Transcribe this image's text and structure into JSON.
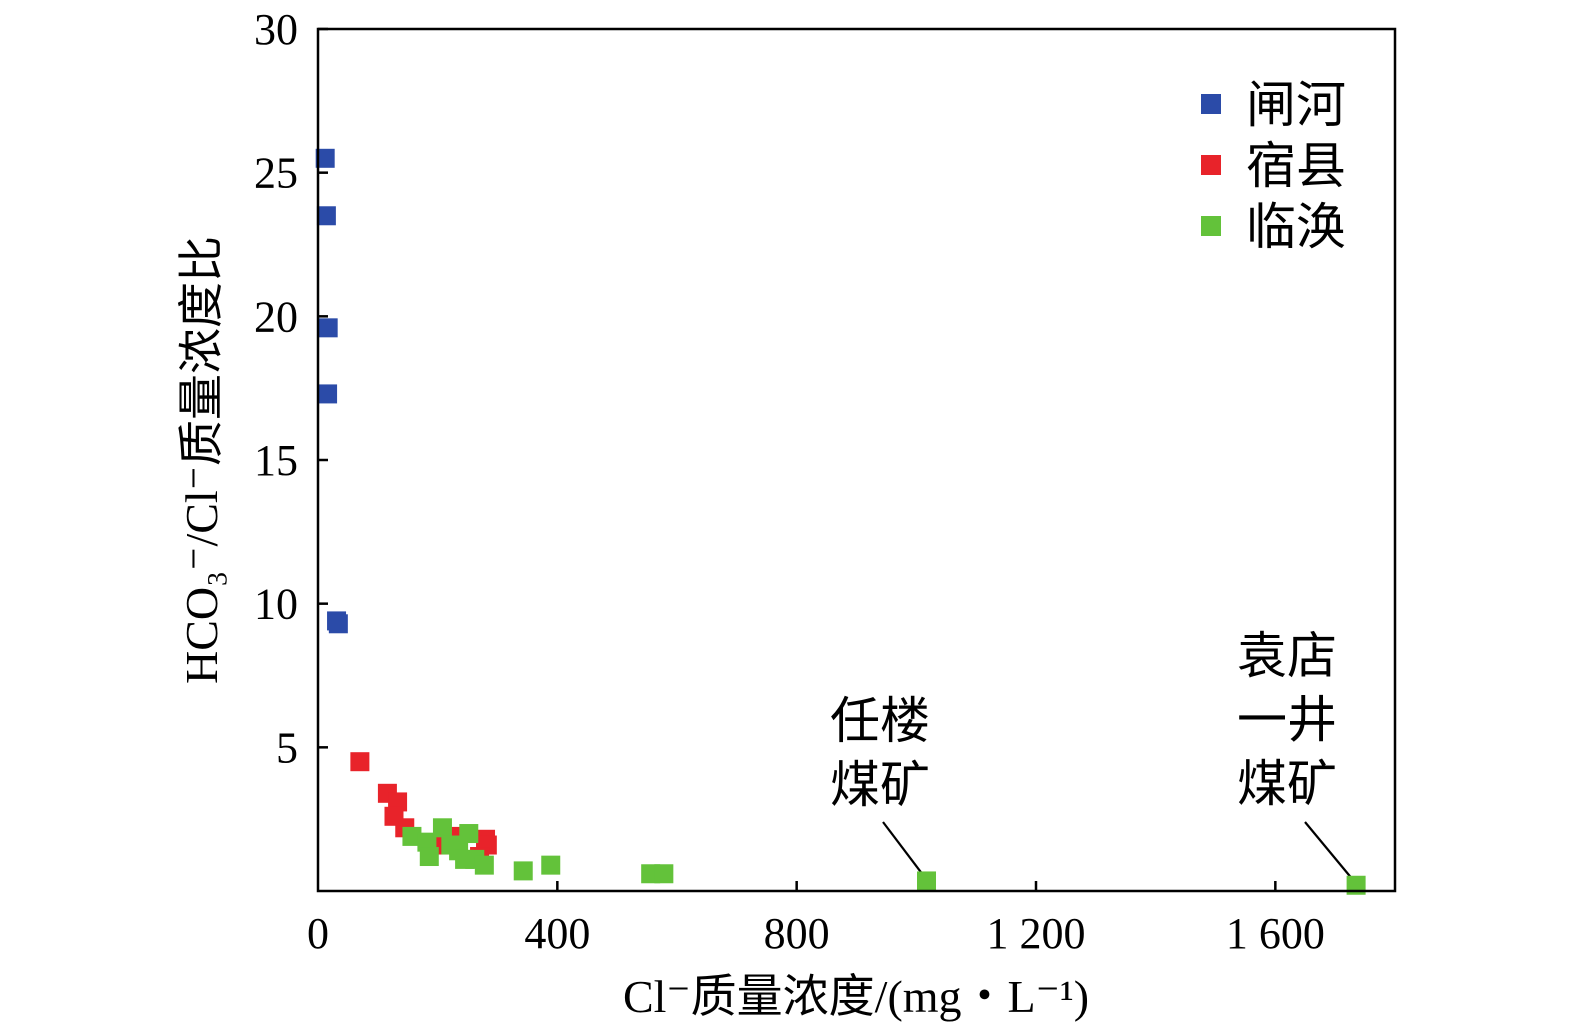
{
  "chart_data": {
    "type": "scatter",
    "xlabel": "Cl⁻质量浓度/(mg・L⁻¹)",
    "ylabel": "HCO₃⁻/Cl⁻质量浓度比",
    "xlim": [
      0,
      1800
    ],
    "ylim": [
      0,
      30
    ],
    "xticks": [
      0,
      400,
      800,
      1200,
      1600
    ],
    "xtick_labels": [
      "0",
      "400",
      "800",
      "1 200",
      "1 600"
    ],
    "yticks": [
      5,
      10,
      15,
      20,
      25,
      30
    ],
    "ytick_labels": [
      "5",
      "10",
      "15",
      "20",
      "25",
      "30"
    ],
    "grid": false,
    "legend_position": "top-right",
    "series": [
      {
        "name": "闸河",
        "color": "#2b4ba8",
        "points": [
          {
            "x": 12,
            "y": 25.5
          },
          {
            "x": 14,
            "y": 23.5
          },
          {
            "x": 17,
            "y": 19.6
          },
          {
            "x": 16,
            "y": 17.3
          },
          {
            "x": 31,
            "y": 9.4
          },
          {
            "x": 34,
            "y": 9.3
          }
        ]
      },
      {
        "name": "宿县",
        "color": "#e8232a",
        "points": [
          {
            "x": 70,
            "y": 4.5
          },
          {
            "x": 116,
            "y": 3.4
          },
          {
            "x": 133,
            "y": 3.1
          },
          {
            "x": 127,
            "y": 2.6
          },
          {
            "x": 145,
            "y": 2.2
          },
          {
            "x": 205,
            "y": 1.6
          },
          {
            "x": 225,
            "y": 1.9
          },
          {
            "x": 280,
            "y": 1.8
          },
          {
            "x": 283,
            "y": 1.6
          },
          {
            "x": 270,
            "y": 1.2
          }
        ]
      },
      {
        "name": "临涣",
        "color": "#63c23a",
        "points": [
          {
            "x": 157,
            "y": 1.9
          },
          {
            "x": 182,
            "y": 1.7
          },
          {
            "x": 186,
            "y": 1.2
          },
          {
            "x": 208,
            "y": 2.2
          },
          {
            "x": 222,
            "y": 1.6
          },
          {
            "x": 235,
            "y": 1.4
          },
          {
            "x": 245,
            "y": 1.1
          },
          {
            "x": 252,
            "y": 2.0
          },
          {
            "x": 262,
            "y": 1.1
          },
          {
            "x": 278,
            "y": 0.9
          },
          {
            "x": 343,
            "y": 0.7
          },
          {
            "x": 389,
            "y": 0.9
          },
          {
            "x": 556,
            "y": 0.6
          },
          {
            "x": 578,
            "y": 0.6
          },
          {
            "x": 1017,
            "y": 0.35
          },
          {
            "x": 1735,
            "y": 0.2
          }
        ]
      }
    ],
    "annotations": [
      {
        "lines": [
          "任楼",
          "煤矿"
        ],
        "target": {
          "x": 1017,
          "y": 0.35
        }
      },
      {
        "lines": [
          "袁店",
          "一井",
          "煤矿"
        ],
        "target": {
          "x": 1735,
          "y": 0.2
        }
      }
    ]
  }
}
